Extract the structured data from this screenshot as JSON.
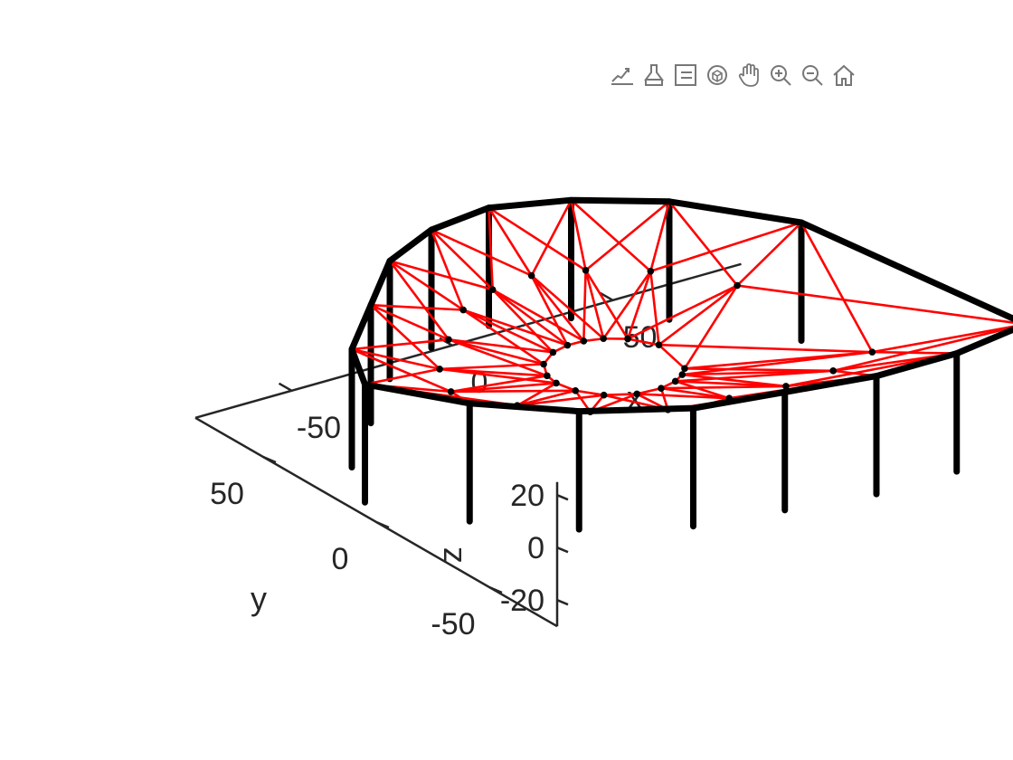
{
  "toolbar": {
    "icons": [
      "export-icon",
      "brush-icon",
      "legend-icon",
      "rotate3d-icon",
      "pan-icon",
      "zoom-in-icon",
      "zoom-out-icon",
      "home-icon"
    ]
  },
  "chart_data": {
    "type": "line",
    "title": "",
    "xlabel": "x",
    "ylabel": "y",
    "zlabel": "z",
    "xlim": [
      -80,
      90
    ],
    "ylim": [
      -80,
      80
    ],
    "zlim": [
      -30,
      25
    ],
    "xticks": [
      -50,
      0,
      50
    ],
    "xtick_labels": [
      "-50",
      "0",
      "50"
    ],
    "yticks": [
      -50,
      0,
      50
    ],
    "ytick_labels": [
      "-50",
      "0",
      "50"
    ],
    "zticks": [
      -20,
      0,
      20
    ],
    "ztick_labels": [
      "-20",
      "0",
      "20"
    ],
    "grid": false,
    "legend": "none",
    "colors": {
      "frame": "#000000",
      "web": "#ff0000",
      "axes": "#262626"
    },
    "series": [
      {
        "label_in_plot": false,
        "kind": "outer-ring",
        "outer_ring_x": [
          80,
          55,
          30,
          5,
          -20,
          -45,
          -65,
          -80,
          -70,
          -50,
          -30,
          -10,
          10,
          30,
          50,
          70
        ],
        "outer_ring_y": [
          -60,
          -65,
          -65,
          -60,
          -55,
          -40,
          -20,
          5,
          25,
          45,
          65,
          75,
          78,
          70,
          55,
          25
        ],
        "outer_ring_z": 20,
        "post_bottom_z": -25
      },
      {
        "label_in_plot": false,
        "kind": "inner-ring",
        "inner_radius": 18,
        "inner_z": 0
      },
      {
        "label_in_plot": false,
        "kind": "cable-web",
        "note_nodes_radius_fraction": 0.55
      }
    ]
  }
}
